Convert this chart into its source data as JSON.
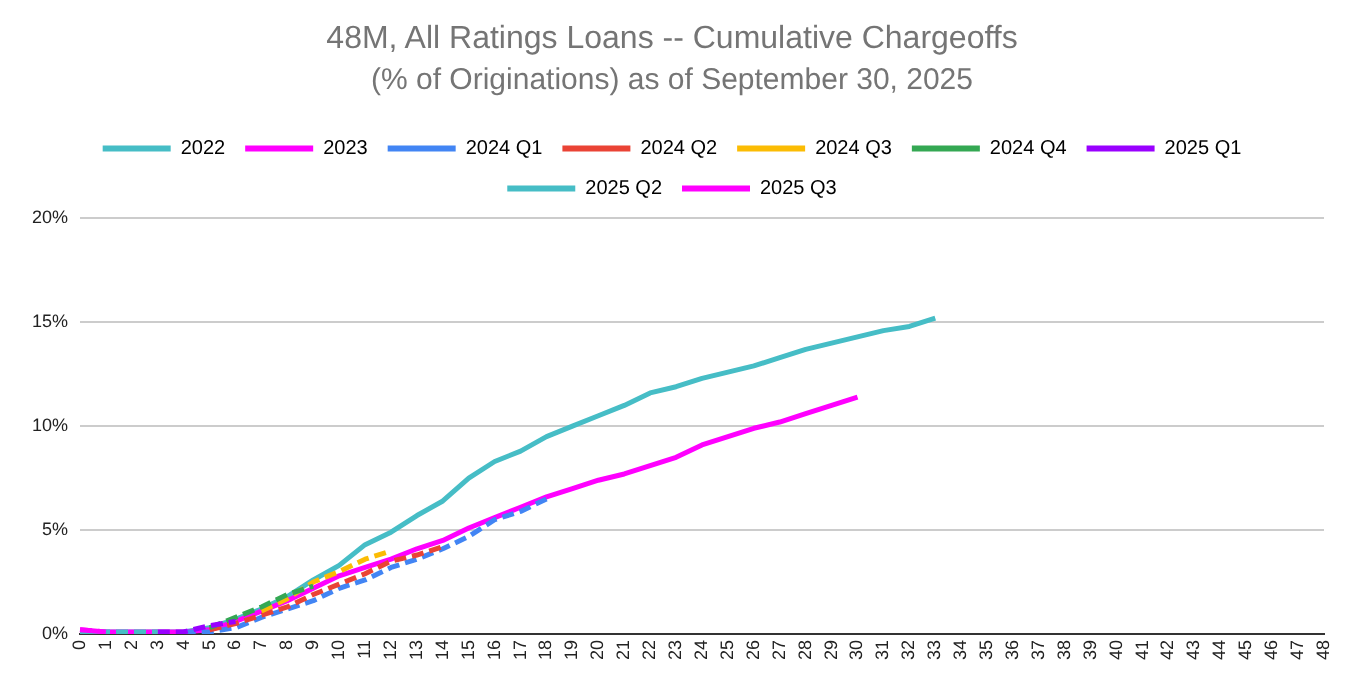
{
  "chart_data": {
    "type": "line",
    "title": "48M, All Ratings Loans -- Cumulative Chargeoffs",
    "subtitle": "(% of Originations) as of September 30, 2025",
    "categories": [
      "0",
      "1",
      "2",
      "3",
      "4",
      "5",
      "6",
      "7",
      "8",
      "9",
      "10",
      "11",
      "12",
      "13",
      "14",
      "15",
      "16",
      "17",
      "18",
      "19",
      "20",
      "21",
      "22",
      "23",
      "24",
      "25",
      "26",
      "27",
      "28",
      "29",
      "30",
      "31",
      "32",
      "33",
      "34",
      "35",
      "36",
      "37",
      "38",
      "39",
      "40",
      "41",
      "42",
      "43",
      "44",
      "45",
      "46",
      "47",
      "48"
    ],
    "series": [
      {
        "name": "2022",
        "color": "#46bdc6",
        "line_style": "solid",
        "values": [
          0.1,
          0.1,
          0.1,
          0.1,
          0.1,
          0.3,
          0.7,
          1.2,
          1.8,
          2.6,
          3.3,
          4.3,
          4.9,
          5.7,
          6.4,
          7.5,
          8.3,
          8.8,
          9.5,
          10.0,
          10.5,
          11.0,
          11.6,
          11.9,
          12.3,
          12.6,
          12.9,
          13.3,
          13.7,
          14.0,
          14.3,
          14.6,
          14.8,
          15.2,
          null,
          null,
          null,
          null,
          null,
          null,
          null,
          null,
          null,
          null,
          null,
          null,
          null,
          null,
          null
        ]
      },
      {
        "name": "2023",
        "color": "#ff00ff",
        "line_style": "solid",
        "values": [
          0.2,
          0.1,
          0.1,
          0.1,
          0.1,
          0.2,
          0.6,
          1.1,
          1.6,
          2.2,
          2.8,
          3.2,
          3.6,
          4.1,
          4.5,
          5.1,
          5.6,
          6.1,
          6.6,
          7.0,
          7.4,
          7.7,
          8.1,
          8.5,
          9.1,
          9.5,
          9.9,
          10.2,
          10.6,
          11.0,
          11.4,
          null,
          null,
          null,
          null,
          null,
          null,
          null,
          null,
          null,
          null,
          null,
          null,
          null,
          null,
          null,
          null,
          null,
          null
        ]
      },
      {
        "name": "2024 Q1",
        "color": "#4285f4",
        "line_style": "dashed",
        "values": [
          null,
          null,
          null,
          null,
          0.1,
          0.1,
          0.3,
          0.8,
          1.2,
          1.6,
          2.2,
          2.6,
          3.2,
          3.6,
          4.1,
          4.7,
          5.5,
          5.9,
          6.5,
          null,
          null,
          null,
          null,
          null,
          null,
          null,
          null,
          null,
          null,
          null,
          null,
          null,
          null,
          null,
          null,
          null,
          null,
          null,
          null,
          null,
          null,
          null,
          null,
          null,
          null,
          null,
          null,
          null,
          null
        ]
      },
      {
        "name": "2024 Q2",
        "color": "#ea4335",
        "line_style": "dashed",
        "values": [
          null,
          null,
          null,
          null,
          null,
          0.2,
          0.5,
          0.9,
          1.3,
          1.9,
          2.4,
          2.9,
          3.5,
          3.8,
          4.2,
          null,
          null,
          null,
          null,
          null,
          null,
          null,
          null,
          null,
          null,
          null,
          null,
          null,
          null,
          null,
          null,
          null,
          null,
          null,
          null,
          null,
          null,
          null,
          null,
          null,
          null,
          null,
          null,
          null,
          null,
          null,
          null,
          null,
          null
        ]
      },
      {
        "name": "2024 Q3",
        "color": "#fbbc04",
        "line_style": "dashed",
        "values": [
          null,
          null,
          null,
          null,
          null,
          null,
          null,
          1.1,
          1.7,
          2.5,
          3.0,
          3.6,
          4.0,
          null,
          null,
          null,
          null,
          null,
          null,
          null,
          null,
          null,
          null,
          null,
          null,
          null,
          null,
          null,
          null,
          null,
          null,
          null,
          null,
          null,
          null,
          null,
          null,
          null,
          null,
          null,
          null,
          null,
          null,
          null,
          null,
          null,
          null,
          null,
          null
        ]
      },
      {
        "name": "2024 Q4",
        "color": "#34a853",
        "line_style": "dashed",
        "values": [
          null,
          null,
          null,
          null,
          null,
          0.3,
          0.8,
          1.3,
          1.9,
          2.3,
          null,
          null,
          null,
          null,
          null,
          null,
          null,
          null,
          null,
          null,
          null,
          null,
          null,
          null,
          null,
          null,
          null,
          null,
          null,
          null,
          null,
          null,
          null,
          null,
          null,
          null,
          null,
          null,
          null,
          null,
          null,
          null,
          null,
          null,
          null,
          null,
          null,
          null,
          null
        ]
      },
      {
        "name": "2025 Q1",
        "color": "#9900ff",
        "line_style": "dashed",
        "values": [
          null,
          null,
          null,
          0.1,
          0.1,
          0.4,
          0.6,
          null,
          null,
          null,
          null,
          null,
          null,
          null,
          null,
          null,
          null,
          null,
          null,
          null,
          null,
          null,
          null,
          null,
          null,
          null,
          null,
          null,
          null,
          null,
          null,
          null,
          null,
          null,
          null,
          null,
          null,
          null,
          null,
          null,
          null,
          null,
          null,
          null,
          null,
          null,
          null,
          null,
          null
        ]
      },
      {
        "name": "2025 Q2",
        "color": "#46bdc6",
        "line_style": "dashed",
        "values": [
          0.1,
          0.1,
          0.1,
          0.1,
          null,
          null,
          null,
          null,
          null,
          null,
          null,
          null,
          null,
          null,
          null,
          null,
          null,
          null,
          null,
          null,
          null,
          null,
          null,
          null,
          null,
          null,
          null,
          null,
          null,
          null,
          null,
          null,
          null,
          null,
          null,
          null,
          null,
          null,
          null,
          null,
          null,
          null,
          null,
          null,
          null,
          null,
          null,
          null,
          null
        ]
      },
      {
        "name": "2025 Q3",
        "color": "#ff00ff",
        "line_style": "dashed",
        "values": [
          0.2,
          0.1,
          null,
          null,
          null,
          null,
          null,
          null,
          null,
          null,
          null,
          null,
          null,
          null,
          null,
          null,
          null,
          null,
          null,
          null,
          null,
          null,
          null,
          null,
          null,
          null,
          null,
          null,
          null,
          null,
          null,
          null,
          null,
          null,
          null,
          null,
          null,
          null,
          null,
          null,
          null,
          null,
          null,
          null,
          null,
          null,
          null,
          null,
          null
        ]
      }
    ],
    "ylim": [
      0,
      20
    ],
    "yticks": [
      {
        "value": 0,
        "label": "0%"
      },
      {
        "value": 5,
        "label": "5%"
      },
      {
        "value": 10,
        "label": "10%"
      },
      {
        "value": 15,
        "label": "15%"
      },
      {
        "value": 20,
        "label": "20%"
      }
    ],
    "grid": "y",
    "legend": "top",
    "marker": "none"
  }
}
